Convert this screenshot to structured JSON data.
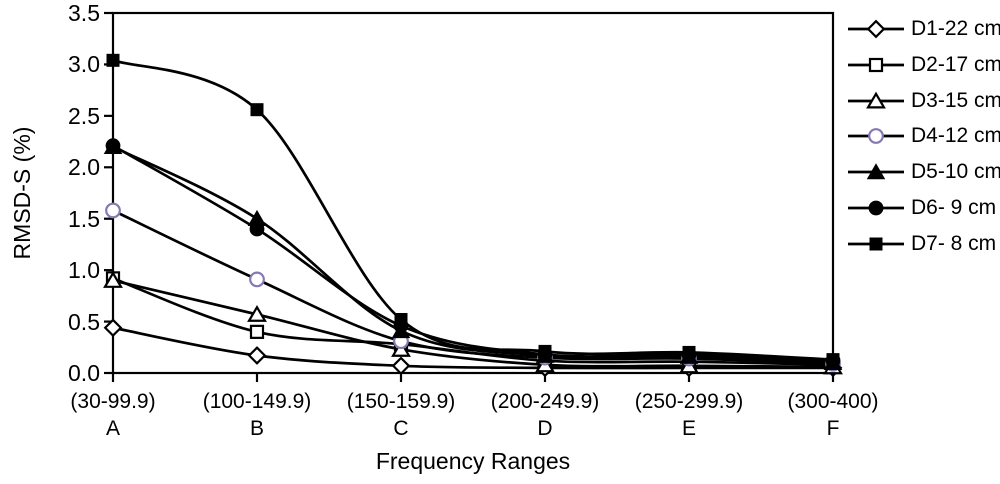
{
  "chart_data": {
    "type": "line",
    "title": "",
    "xlabel": "Frequency Ranges",
    "ylabel": "RMSD-S (%)",
    "ylim": [
      0.0,
      3.5
    ],
    "yticks": [
      0,
      0.5,
      1,
      1.5,
      2,
      2.5,
      3,
      3.5
    ],
    "ytick_labels": [
      "0.0",
      "0.5",
      "1.0",
      "1.5",
      "2.0",
      "2.5",
      "3.0",
      "3.5"
    ],
    "categories": [
      "(30-99.9)",
      "(100-149.9)",
      "(150-159.9)",
      "(200-249.9)",
      "(250-299.9)",
      "(300-400)"
    ],
    "category_letters": [
      "A",
      "B",
      "C",
      "D",
      "E",
      "F"
    ],
    "grid": false,
    "legend_position": "right",
    "line_color": "#000000",
    "open_circle_color": "#8678b2",
    "series": [
      {
        "name": "D1-22 cm",
        "marker": "diamond-open",
        "values": [
          0.44,
          0.17,
          0.07,
          0.05,
          0.05,
          0.05
        ]
      },
      {
        "name": "D2-17 cm",
        "marker": "square-open",
        "values": [
          0.92,
          0.4,
          0.28,
          0.12,
          0.11,
          0.08
        ]
      },
      {
        "name": "D3-15 cm",
        "marker": "triangle-open",
        "values": [
          0.9,
          0.57,
          0.23,
          0.08,
          0.07,
          0.06
        ]
      },
      {
        "name": "D4-12 cm",
        "marker": "circle-open",
        "values": [
          1.58,
          0.91,
          0.31,
          0.15,
          0.14,
          0.09
        ]
      },
      {
        "name": "D5-10 cm",
        "marker": "triangle-filled",
        "values": [
          2.2,
          1.5,
          0.41,
          0.17,
          0.16,
          0.1
        ]
      },
      {
        "name": "D6- 9 cm",
        "marker": "circle-filled",
        "values": [
          2.21,
          1.4,
          0.46,
          0.18,
          0.18,
          0.12
        ]
      },
      {
        "name": "D7- 8 cm",
        "marker": "square-filled",
        "values": [
          3.04,
          2.56,
          0.52,
          0.21,
          0.2,
          0.13
        ]
      }
    ]
  }
}
